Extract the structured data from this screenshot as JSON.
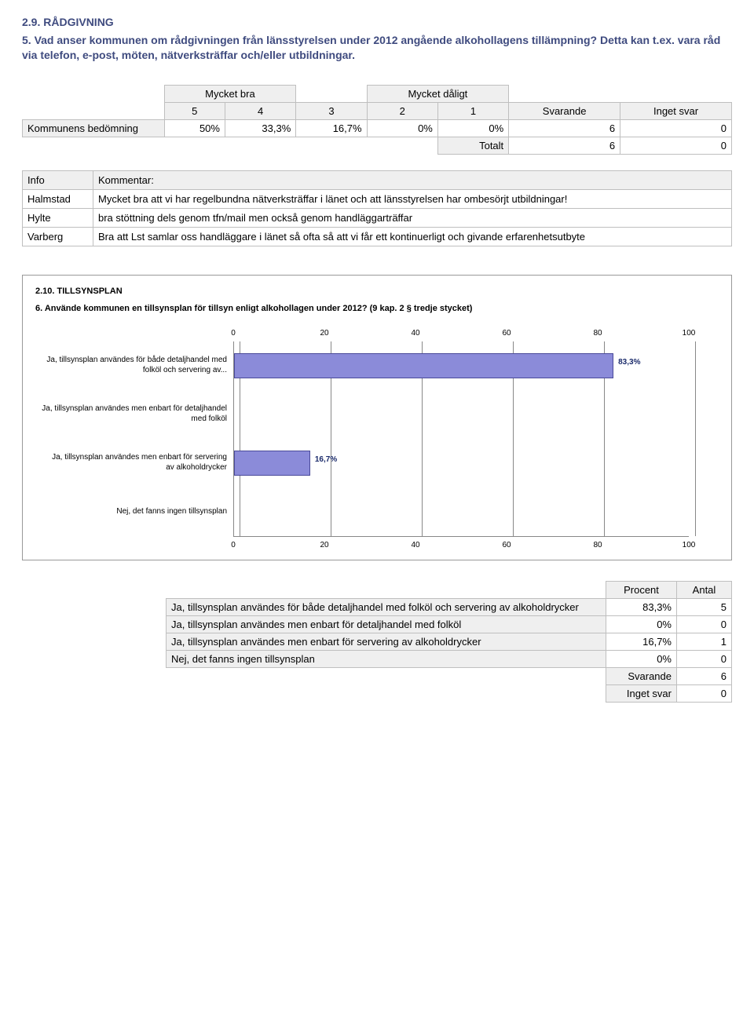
{
  "section": {
    "heading": "2.9. RÅDGIVNING",
    "question": "5. Vad anser kommunen om rådgivningen från länsstyrelsen under 2012 angående alkohollagens tillämpning? Detta kan t.ex. vara råd via telefon, e-post, möten, nätverksträffar och/eller utbildningar."
  },
  "assessment_table": {
    "header_left": "Mycket bra",
    "header_right": "Mycket dåligt",
    "scale": [
      "5",
      "4",
      "3",
      "2",
      "1"
    ],
    "svarande_label": "Svarande",
    "inget_svar_label": "Inget svar",
    "row_label": "Kommunens bedömning",
    "values": [
      "50%",
      "33,3%",
      "16,7%",
      "0%",
      "0%"
    ],
    "svarande_val": "6",
    "inget_svar_val": "0",
    "totalt_label": "Totalt",
    "totalt_svarande": "6",
    "totalt_inget": "0"
  },
  "comments_table": {
    "info_label": "Info",
    "kommentar_label": "Kommentar:",
    "rows": [
      {
        "who": "Halmstad",
        "text": "Mycket bra att vi har regelbundna nätverksträffar i länet och att länsstyrelsen har ombesörjt utbildningar!"
      },
      {
        "who": "Hylte",
        "text": "bra stöttning dels genom tfn/mail men också genom handläggarträffar"
      },
      {
        "who": "Varberg",
        "text": "Bra att Lst samlar oss handläggare i länet så ofta så att vi får ett kontinuerligt och givande erfarenhetsutbyte"
      }
    ]
  },
  "chart": {
    "type": "bar-horizontal",
    "heading": "2.10. TILLSYNSPLAN",
    "question": "6. Använde kommunen en tillsynsplan för tillsyn enligt alkohollagen under 2012? (9 kap. 2 § tredje stycket)",
    "ticks": [
      "0",
      "20",
      "40",
      "60",
      "80",
      "100"
    ],
    "xmax": 100,
    "bar_color": "#8b8bd9",
    "bar_border": "#4a4a9a",
    "categories": [
      {
        "label": "Ja, tillsynsplan användes för både detaljhandel med folköl och servering av...",
        "value": 83.3,
        "display": "83,3%"
      },
      {
        "label": "Ja, tillsynsplan användes men enbart för detaljhandel med folköl",
        "value": 0,
        "display": ""
      },
      {
        "label": "Ja, tillsynsplan användes men enbart för servering av alkoholdrycker",
        "value": 16.7,
        "display": "16,7%"
      },
      {
        "label": "Nej, det fanns ingen tillsynsplan",
        "value": 0,
        "display": ""
      }
    ]
  },
  "pct_table": {
    "procent_label": "Procent",
    "antal_label": "Antal",
    "rows": [
      {
        "label": "Ja, tillsynsplan användes för både detaljhandel med folköl och servering av alkoholdrycker",
        "pct": "83,3%",
        "n": "5"
      },
      {
        "label": "Ja, tillsynsplan användes men enbart för detaljhandel med folköl",
        "pct": "0%",
        "n": "0"
      },
      {
        "label": "Ja, tillsynsplan användes men enbart för servering av alkoholdrycker",
        "pct": "16,7%",
        "n": "1"
      },
      {
        "label": "Nej, det fanns ingen tillsynsplan",
        "pct": "0%",
        "n": "0"
      }
    ],
    "svarande_label": "Svarande",
    "svarande_n": "6",
    "inget_svar_label": "Inget svar",
    "inget_svar_n": "0"
  }
}
